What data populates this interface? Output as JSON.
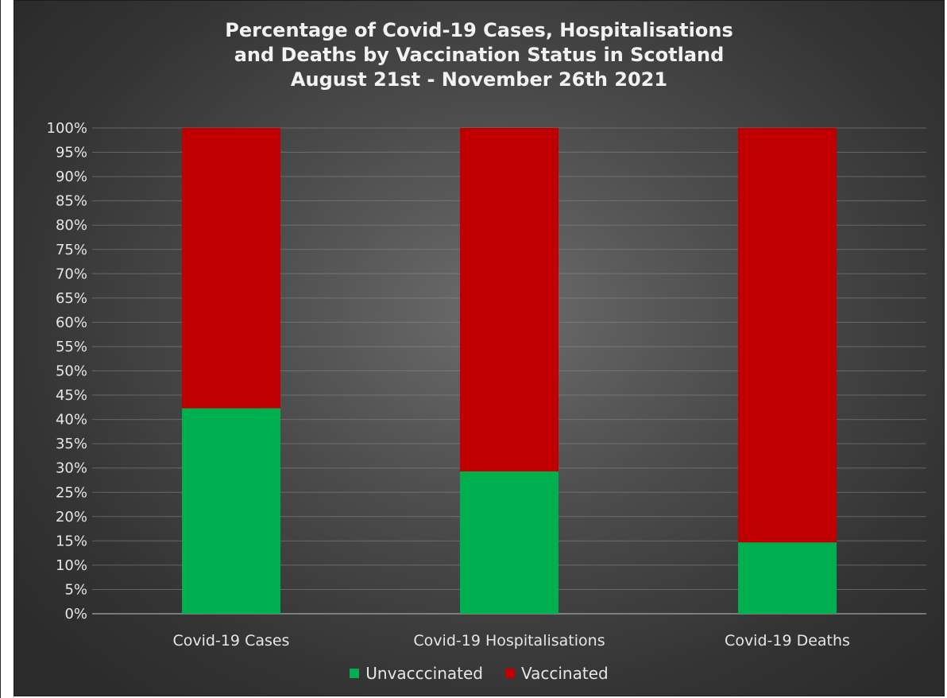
{
  "chart_data": {
    "type": "bar",
    "stacked": true,
    "title_lines": [
      "Percentage of Covid-19 Cases, Hospitalisations",
      "and Deaths by Vaccination Status in Scotland",
      "August 21st - November 26th 2021"
    ],
    "categories": [
      "Covid-19 Cases",
      "Covid-19 Hospitalisations",
      "Covid-19 Deaths"
    ],
    "series": [
      {
        "name": "Unvacccinated",
        "color": "#00b050",
        "values": [
          42.3,
          29.3,
          14.7
        ]
      },
      {
        "name": "Vaccinated",
        "color": "#c00000",
        "values": [
          57.7,
          70.7,
          85.3
        ]
      }
    ],
    "ylim": [
      0,
      100
    ],
    "y_step": 5,
    "y_tick_labels": [
      "0%",
      "5%",
      "10%",
      "15%",
      "20%",
      "25%",
      "30%",
      "35%",
      "40%",
      "45%",
      "50%",
      "55%",
      "60%",
      "65%",
      "70%",
      "75%",
      "80%",
      "85%",
      "90%",
      "95%",
      "100%"
    ],
    "grid": true,
    "legend_position": "bottom"
  }
}
